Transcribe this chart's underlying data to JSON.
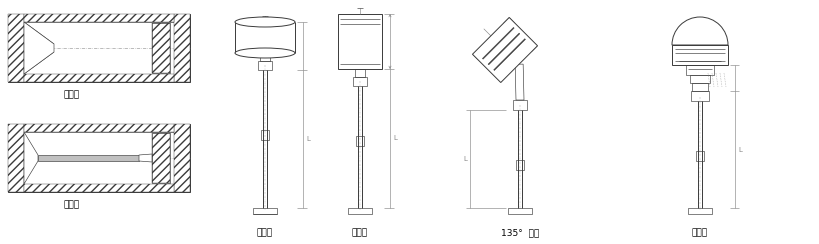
{
  "bg_color": "#ffffff",
  "lc": "#3a3a3a",
  "lc_dim": "#888888",
  "lc_dash": "#888888",
  "lw_main": 0.7,
  "lw_thin": 0.45,
  "lw_hatch": 0.35,
  "label_fontsize": 6.5,
  "fig_width": 8.19,
  "fig_height": 2.44,
  "dpi": 100,
  "labels": {
    "yiti": "一体式",
    "chuxin": "抽芯式",
    "zhou": "轴向型",
    "jing": "径向型",
    "deg135": "135°  向型",
    "wan": "万向型"
  }
}
